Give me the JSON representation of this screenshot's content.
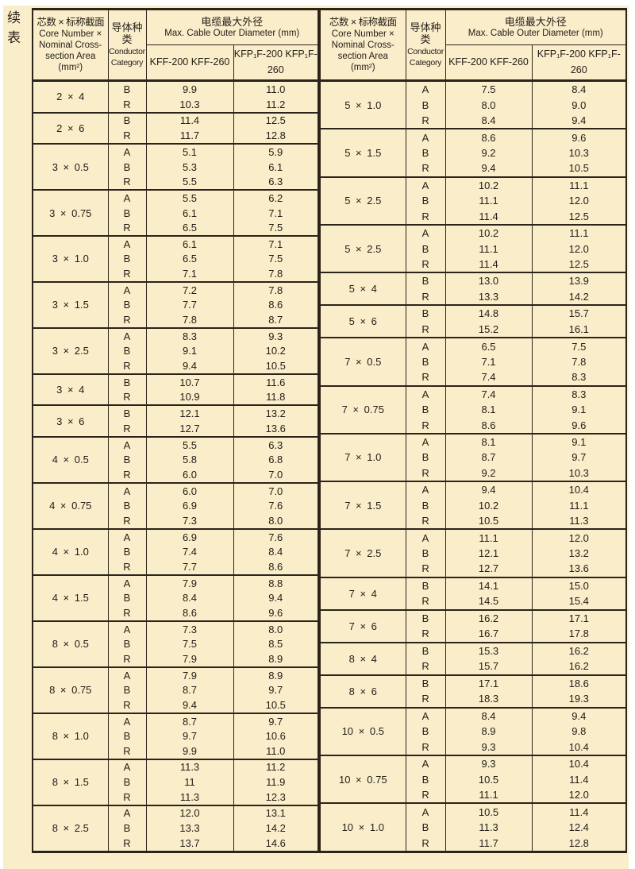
{
  "page": {
    "continued_label": "续\n表",
    "background_color": "#faedca",
    "border_color": "#2b241b"
  },
  "header": {
    "col1_zh": "芯数 × 标称截面",
    "col1_en": "Core Number ×\nNominal Cross-\nsection Area\n(mm²)",
    "col2_zh": "导体种\n类",
    "col2_en": "Conductor\nCategory",
    "col34_zh": "电缆最大外径",
    "col34_en": "Max. Cable Outer Diameter (mm)",
    "sub_kff": "KFF-200\nKFF-260",
    "sub_kfp": "KFP₁F-200\nKFP₁F-260"
  },
  "tables": [
    {
      "groups": [
        {
          "label": "2 × 4",
          "rows": [
            [
              "B",
              "9.9",
              "11.0"
            ],
            [
              "R",
              "10.3",
              "11.2"
            ]
          ]
        },
        {
          "label": "2 × 6",
          "rows": [
            [
              "B",
              "11.4",
              "12.5"
            ],
            [
              "R",
              "11.7",
              "12.8"
            ]
          ]
        },
        {
          "label": "3 × 0.5",
          "rows": [
            [
              "A",
              "5.1",
              "5.9"
            ],
            [
              "B",
              "5.3",
              "6.1"
            ],
            [
              "R",
              "5.5",
              "6.3"
            ]
          ]
        },
        {
          "label": "3 × 0.75",
          "rows": [
            [
              "A",
              "5.5",
              "6.2"
            ],
            [
              "B",
              "6.1",
              "7.1"
            ],
            [
              "R",
              "6.5",
              "7.5"
            ]
          ]
        },
        {
          "label": "3 × 1.0",
          "rows": [
            [
              "A",
              "6.1",
              "7.1"
            ],
            [
              "B",
              "6.5",
              "7.5"
            ],
            [
              "R",
              "7.1",
              "7.8"
            ]
          ]
        },
        {
          "label": "3 × 1.5",
          "rows": [
            [
              "A",
              "7.2",
              "7.8"
            ],
            [
              "B",
              "7.7",
              "8.6"
            ],
            [
              "R",
              "7.8",
              "8.7"
            ]
          ]
        },
        {
          "label": "3 × 2.5",
          "rows": [
            [
              "A",
              "8.3",
              "9.3"
            ],
            [
              "B",
              "9.1",
              "10.2"
            ],
            [
              "R",
              "9.4",
              "10.5"
            ]
          ]
        },
        {
          "label": "3 × 4",
          "rows": [
            [
              "B",
              "10.7",
              "11.6"
            ],
            [
              "R",
              "10.9",
              "11.8"
            ]
          ]
        },
        {
          "label": "3 × 6",
          "rows": [
            [
              "B",
              "12.1",
              "13.2"
            ],
            [
              "R",
              "12.7",
              "13.6"
            ]
          ]
        },
        {
          "label": "4 × 0.5",
          "rows": [
            [
              "A",
              "5.5",
              "6.3"
            ],
            [
              "B",
              "5.8",
              "6.8"
            ],
            [
              "R",
              "6.0",
              "7.0"
            ]
          ]
        },
        {
          "label": "4 × 0.75",
          "rows": [
            [
              "A",
              "6.0",
              "7.0"
            ],
            [
              "B",
              "6.9",
              "7.6"
            ],
            [
              "R",
              "7.3",
              "8.0"
            ]
          ]
        },
        {
          "label": "4 × 1.0",
          "rows": [
            [
              "A",
              "6.9",
              "7.6"
            ],
            [
              "B",
              "7.4",
              "8.4"
            ],
            [
              "R",
              "7.7",
              "8.6"
            ]
          ]
        },
        {
          "label": "4 × 1.5",
          "rows": [
            [
              "A",
              "7.9",
              "8.8"
            ],
            [
              "B",
              "8.4",
              "9.4"
            ],
            [
              "R",
              "8.6",
              "9.6"
            ]
          ]
        },
        {
          "label": "8 × 0.5",
          "rows": [
            [
              "A",
              "7.3",
              "8.0"
            ],
            [
              "B",
              "7.5",
              "8.5"
            ],
            [
              "R",
              "7.9",
              "8.9"
            ]
          ]
        },
        {
          "label": "8 × 0.75",
          "rows": [
            [
              "A",
              "7.9",
              "8.9"
            ],
            [
              "B",
              "8.7",
              "9.7"
            ],
            [
              "R",
              "9.4",
              "10.5"
            ]
          ]
        },
        {
          "label": "8 × 1.0",
          "rows": [
            [
              "A",
              "8.7",
              "9.7"
            ],
            [
              "B",
              "9.7",
              "10.6"
            ],
            [
              "R",
              "9.9",
              "11.0"
            ]
          ]
        },
        {
          "label": "8 × 1.5",
          "rows": [
            [
              "A",
              "11.3",
              "11.2"
            ],
            [
              "B",
              "11",
              "11.9"
            ],
            [
              "R",
              "11.3",
              "12.3"
            ]
          ]
        },
        {
          "label": "8 × 2.5",
          "rows": [
            [
              "A",
              "12.0",
              "13.1"
            ],
            [
              "B",
              "13.3",
              "14.2"
            ],
            [
              "R",
              "13.7",
              "14.6"
            ]
          ]
        }
      ]
    },
    {
      "groups": [
        {
          "label": "5 × 1.0",
          "rows": [
            [
              "A",
              "7.5",
              "8.4"
            ],
            [
              "B",
              "8.0",
              "9.0"
            ],
            [
              "R",
              "8.4",
              "9.4"
            ]
          ]
        },
        {
          "label": "5 × 1.5",
          "rows": [
            [
              "A",
              "8.6",
              "9.6"
            ],
            [
              "B",
              "9.2",
              "10.3"
            ],
            [
              "R",
              "9.4",
              "10.5"
            ]
          ]
        },
        {
          "label": "5 × 2.5",
          "rows": [
            [
              "A",
              "10.2",
              "11.1"
            ],
            [
              "B",
              "11.1",
              "12.0"
            ],
            [
              "R",
              "11.4",
              "12.5"
            ]
          ]
        },
        {
          "label": "5 × 2.5",
          "rows": [
            [
              "A",
              "10.2",
              "11.1"
            ],
            [
              "B",
              "11.1",
              "12.0"
            ],
            [
              "R",
              "11.4",
              "12.5"
            ]
          ]
        },
        {
          "label": "5 × 4",
          "rows": [
            [
              "B",
              "13.0",
              "13.9"
            ],
            [
              "R",
              "13.3",
              "14.2"
            ]
          ]
        },
        {
          "label": "5 × 6",
          "rows": [
            [
              "B",
              "14.8",
              "15.7"
            ],
            [
              "R",
              "15.2",
              "16.1"
            ]
          ]
        },
        {
          "label": "7 × 0.5",
          "rows": [
            [
              "A",
              "6.5",
              "7.5"
            ],
            [
              "B",
              "7.1",
              "7.8"
            ],
            [
              "R",
              "7.4",
              "8.3"
            ]
          ]
        },
        {
          "label": "7 × 0.75",
          "rows": [
            [
              "A",
              "7.4",
              "8.3"
            ],
            [
              "B",
              "8.1",
              "9.1"
            ],
            [
              "R",
              "8.6",
              "9.6"
            ]
          ]
        },
        {
          "label": "7 × 1.0",
          "rows": [
            [
              "A",
              "8.1",
              "9.1"
            ],
            [
              "B",
              "8.7",
              "9.7"
            ],
            [
              "R",
              "9.2",
              "10.3"
            ]
          ]
        },
        {
          "label": "7 × 1.5",
          "rows": [
            [
              "A",
              "9.4",
              "10.4"
            ],
            [
              "B",
              "10.2",
              "11.1"
            ],
            [
              "R",
              "10.5",
              "11.3"
            ]
          ]
        },
        {
          "label": "7 × 2.5",
          "rows": [
            [
              "A",
              "11.1",
              "12.0"
            ],
            [
              "B",
              "12.1",
              "13.2"
            ],
            [
              "R",
              "12.7",
              "13.6"
            ]
          ]
        },
        {
          "label": "7 × 4",
          "rows": [
            [
              "B",
              "14.1",
              "15.0"
            ],
            [
              "R",
              "14.5",
              "15.4"
            ]
          ]
        },
        {
          "label": "7 × 6",
          "rows": [
            [
              "B",
              "16.2",
              "17.1"
            ],
            [
              "R",
              "16.7",
              "17.8"
            ]
          ]
        },
        {
          "label": "8 × 4",
          "rows": [
            [
              "B",
              "15.3",
              "16.2"
            ],
            [
              "R",
              "15.7",
              "16.2"
            ]
          ]
        },
        {
          "label": "8 × 6",
          "rows": [
            [
              "B",
              "17.1",
              "18.6"
            ],
            [
              "R",
              "18.3",
              "19.3"
            ]
          ]
        },
        {
          "label": "10 × 0.5",
          "rows": [
            [
              "A",
              "8.4",
              "9.4"
            ],
            [
              "B",
              "8.9",
              "9.8"
            ],
            [
              "R",
              "9.3",
              "10.4"
            ]
          ]
        },
        {
          "label": "10 × 0.75",
          "rows": [
            [
              "A",
              "9.3",
              "10.4"
            ],
            [
              "B",
              "10.5",
              "11.4"
            ],
            [
              "R",
              "11.1",
              "12.0"
            ]
          ]
        },
        {
          "label": "10 × 1.0",
          "rows": [
            [
              "A",
              "10.5",
              "11.4"
            ],
            [
              "B",
              "11.3",
              "12.4"
            ],
            [
              "R",
              "11.7",
              "12.8"
            ]
          ]
        }
      ]
    }
  ]
}
